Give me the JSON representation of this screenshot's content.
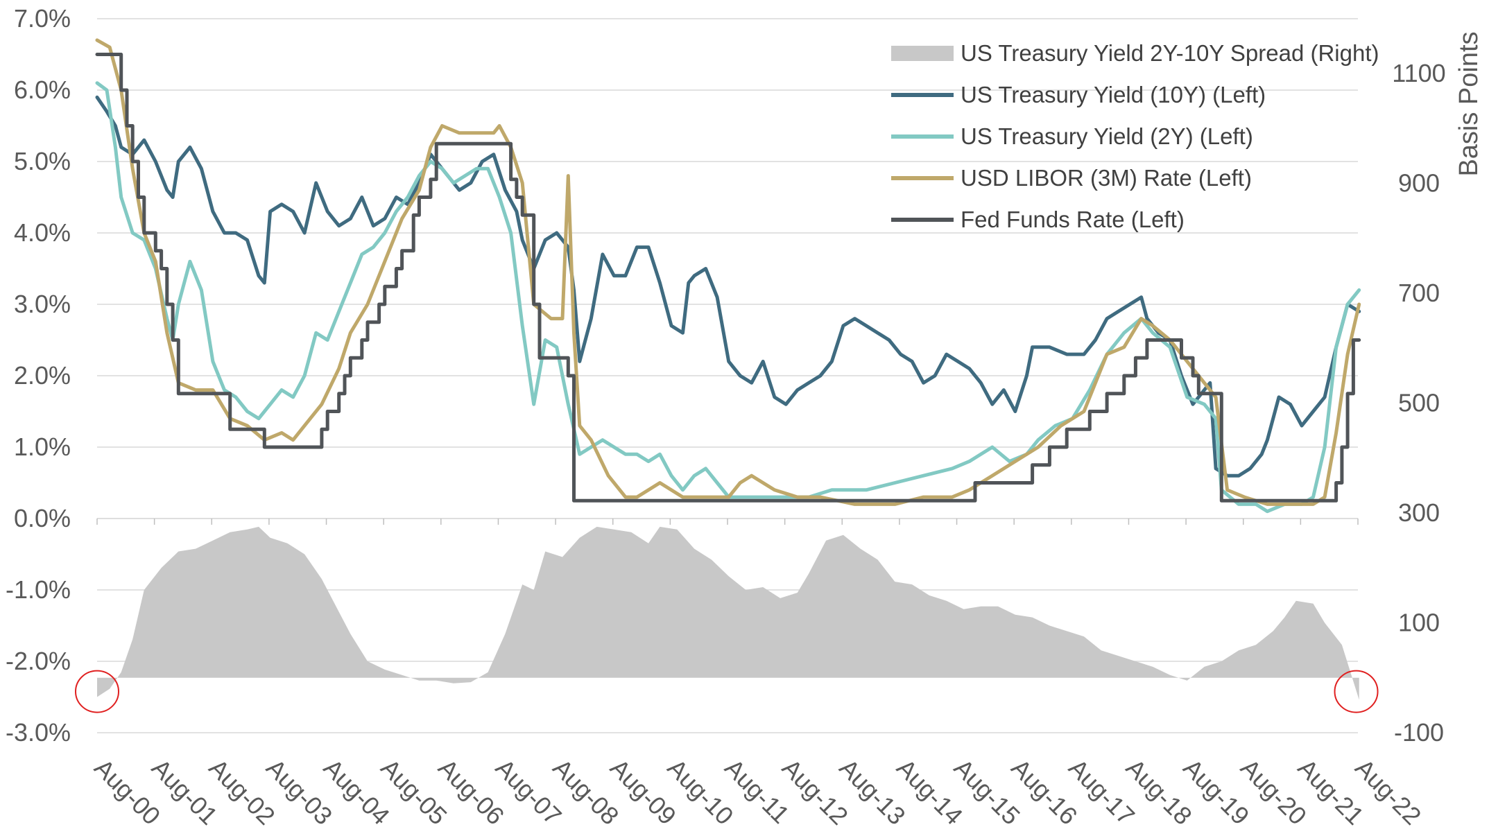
{
  "chart_data": {
    "type": "line",
    "x_axis": {
      "categories": [
        "Aug-00",
        "Aug-01",
        "Aug-02",
        "Aug-03",
        "Aug-04",
        "Aug-05",
        "Aug-06",
        "Aug-07",
        "Aug-08",
        "Aug-09",
        "Aug-10",
        "Aug-11",
        "Aug-12",
        "Aug-13",
        "Aug-14",
        "Aug-15",
        "Aug-16",
        "Aug-17",
        "Aug-18",
        "Aug-19",
        "Aug-20",
        "Aug-21",
        "Aug-22"
      ]
    },
    "left_axis": {
      "ticks": [
        "7.0%",
        "6.0%",
        "5.0%",
        "4.0%",
        "3.0%",
        "2.0%",
        "1.0%",
        "0.0%",
        "-1.0%",
        "-2.0%",
        "-3.0%"
      ],
      "ylim": [
        -3.0,
        7.0
      ]
    },
    "right_axis": {
      "label": "Basis Points",
      "ticks": [
        "1100",
        "900",
        "700",
        "500",
        "300",
        "100",
        "-100"
      ],
      "ylim": [
        -100,
        1200
      ]
    },
    "legend": {
      "position": "top-right",
      "entries": [
        {
          "label": "US Treasury Yield 2Y-10Y Spread (Right)",
          "color": "#c8c8c8",
          "kind": "area"
        },
        {
          "label": "US Treasury Yield (10Y) (Left)",
          "color": "#3f6b80",
          "kind": "line"
        },
        {
          "label": "US Treasury Yield (2Y) (Left)",
          "color": "#82c9c3",
          "kind": "line"
        },
        {
          "label": "USD LIBOR (3M) Rate (Left)",
          "color": "#bfa86a",
          "kind": "line"
        },
        {
          "label": "Fed Funds Rate (Left)",
          "color": "#505458",
          "kind": "line"
        }
      ]
    },
    "series": [
      {
        "name": "US Treasury Yield 2Y-10Y Spread (Right)",
        "axis": "right",
        "color": "#c8c8c8",
        "type": "area",
        "x": [
          2000.58,
          2000.8,
          2001.0,
          2001.2,
          2001.4,
          2001.7,
          2002.0,
          2002.3,
          2002.6,
          2002.9,
          2003.2,
          2003.4,
          2003.6,
          2003.9,
          2004.2,
          2004.5,
          2004.8,
          2005.0,
          2005.3,
          2005.6,
          2005.9,
          2006.2,
          2006.5,
          2006.8,
          2007.1,
          2007.4,
          2007.7,
          2008.0,
          2008.2,
          2008.4,
          2008.7,
          2009.0,
          2009.3,
          2009.6,
          2009.9,
          2010.2,
          2010.4,
          2010.7,
          2011.0,
          2011.3,
          2011.6,
          2011.9,
          2012.2,
          2012.5,
          2012.8,
          2013.0,
          2013.3,
          2013.6,
          2013.9,
          2014.2,
          2014.5,
          2014.8,
          2015.1,
          2015.4,
          2015.7,
          2016.0,
          2016.3,
          2016.6,
          2016.9,
          2017.2,
          2017.5,
          2017.8,
          2018.1,
          2018.4,
          2018.7,
          2019.0,
          2019.3,
          2019.6,
          2019.9,
          2020.2,
          2020.5,
          2020.8,
          2021.1,
          2021.3,
          2021.5,
          2021.8,
          2022.0,
          2022.3,
          2022.6
        ],
        "y": [
          -35,
          -20,
          10,
          70,
          160,
          200,
          230,
          235,
          250,
          265,
          270,
          275,
          255,
          245,
          225,
          180,
          120,
          80,
          30,
          15,
          5,
          -5,
          -5,
          -10,
          -8,
          10,
          80,
          170,
          160,
          230,
          220,
          255,
          275,
          270,
          265,
          245,
          275,
          270,
          235,
          215,
          185,
          160,
          165,
          145,
          155,
          190,
          250,
          260,
          235,
          215,
          175,
          170,
          150,
          140,
          125,
          130,
          130,
          115,
          110,
          95,
          85,
          75,
          50,
          40,
          30,
          20,
          5,
          -5,
          20,
          30,
          50,
          60,
          85,
          110,
          140,
          135,
          100,
          60,
          -40
        ]
      },
      {
        "name": "US Treasury Yield (10Y) (Left)",
        "axis": "left",
        "color": "#3f6b80",
        "type": "line",
        "x": [
          2000.58,
          2000.75,
          2000.9,
          2001.0,
          2001.2,
          2001.4,
          2001.6,
          2001.8,
          2001.9,
          2002.0,
          2002.2,
          2002.4,
          2002.6,
          2002.8,
          2003.0,
          2003.2,
          2003.4,
          2003.5,
          2003.6,
          2003.8,
          2004.0,
          2004.2,
          2004.4,
          2004.6,
          2004.8,
          2005.0,
          2005.2,
          2005.4,
          2005.6,
          2005.8,
          2006.0,
          2006.2,
          2006.4,
          2006.5,
          2006.7,
          2006.9,
          2007.1,
          2007.3,
          2007.5,
          2007.7,
          2007.9,
          2008.0,
          2008.2,
          2008.4,
          2008.6,
          2008.8,
          2008.9,
          2009.0,
          2009.2,
          2009.4,
          2009.6,
          2009.8,
          2010.0,
          2010.2,
          2010.4,
          2010.6,
          2010.8,
          2010.9,
          2011.0,
          2011.2,
          2011.4,
          2011.6,
          2011.8,
          2012.0,
          2012.2,
          2012.4,
          2012.6,
          2012.8,
          2013.0,
          2013.2,
          2013.4,
          2013.6,
          2013.8,
          2014.0,
          2014.2,
          2014.4,
          2014.6,
          2014.8,
          2015.0,
          2015.2,
          2015.4,
          2015.6,
          2015.8,
          2016.0,
          2016.2,
          2016.4,
          2016.6,
          2016.8,
          2016.9,
          2017.2,
          2017.5,
          2017.8,
          2018.0,
          2018.2,
          2018.4,
          2018.6,
          2018.8,
          2018.9,
          2019.1,
          2019.3,
          2019.5,
          2019.7,
          2019.9,
          2020.0,
          2020.1,
          2020.3,
          2020.5,
          2020.7,
          2020.9,
          2021.0,
          2021.2,
          2021.4,
          2021.6,
          2021.8,
          2022.0,
          2022.2,
          2022.4,
          2022.6
        ],
        "y": [
          5.9,
          5.7,
          5.5,
          5.2,
          5.1,
          5.3,
          5.0,
          4.6,
          4.5,
          5.0,
          5.2,
          4.9,
          4.3,
          4.0,
          4.0,
          3.9,
          3.4,
          3.3,
          4.3,
          4.4,
          4.3,
          4.0,
          4.7,
          4.3,
          4.1,
          4.2,
          4.5,
          4.1,
          4.2,
          4.5,
          4.4,
          4.7,
          5.1,
          5.0,
          4.8,
          4.6,
          4.7,
          5.0,
          5.1,
          4.6,
          4.3,
          3.9,
          3.5,
          3.9,
          4.0,
          3.8,
          3.2,
          2.2,
          2.8,
          3.7,
          3.4,
          3.4,
          3.8,
          3.8,
          3.3,
          2.7,
          2.6,
          3.3,
          3.4,
          3.5,
          3.1,
          2.2,
          2.0,
          1.9,
          2.2,
          1.7,
          1.6,
          1.8,
          1.9,
          2.0,
          2.2,
          2.7,
          2.8,
          2.7,
          2.6,
          2.5,
          2.3,
          2.2,
          1.9,
          2.0,
          2.3,
          2.2,
          2.1,
          1.9,
          1.6,
          1.8,
          1.5,
          2.0,
          2.4,
          2.4,
          2.3,
          2.3,
          2.5,
          2.8,
          2.9,
          3.0,
          3.1,
          2.8,
          2.6,
          2.5,
          2.0,
          1.6,
          1.8,
          1.9,
          0.7,
          0.6,
          0.6,
          0.7,
          0.9,
          1.1,
          1.7,
          1.6,
          1.3,
          1.5,
          1.7,
          2.4,
          3.0,
          2.9
        ]
      },
      {
        "name": "US Treasury Yield (2Y) (Left)",
        "axis": "left",
        "color": "#82c9c3",
        "type": "line",
        "x": [
          2000.58,
          2000.75,
          2000.9,
          2001.0,
          2001.2,
          2001.4,
          2001.6,
          2001.8,
          2001.9,
          2002.0,
          2002.2,
          2002.4,
          2002.6,
          2002.8,
          2003.0,
          2003.2,
          2003.4,
          2003.6,
          2003.8,
          2004.0,
          2004.2,
          2004.4,
          2004.6,
          2004.8,
          2005.0,
          2005.2,
          2005.4,
          2005.6,
          2005.8,
          2006.0,
          2006.2,
          2006.4,
          2006.6,
          2006.8,
          2007.0,
          2007.2,
          2007.4,
          2007.6,
          2007.8,
          2008.0,
          2008.2,
          2008.4,
          2008.6,
          2008.8,
          2009.0,
          2009.2,
          2009.4,
          2009.6,
          2009.8,
          2010.0,
          2010.2,
          2010.4,
          2010.6,
          2010.8,
          2011.0,
          2011.2,
          2011.4,
          2011.6,
          2011.8,
          2012.0,
          2012.5,
          2013.0,
          2013.4,
          2013.6,
          2014.0,
          2014.5,
          2015.0,
          2015.5,
          2015.8,
          2016.0,
          2016.2,
          2016.5,
          2016.8,
          2017.0,
          2017.3,
          2017.6,
          2017.9,
          2018.2,
          2018.5,
          2018.8,
          2019.0,
          2019.3,
          2019.6,
          2019.9,
          2020.1,
          2020.2,
          2020.5,
          2020.8,
          2021.0,
          2021.3,
          2021.6,
          2021.8,
          2022.0,
          2022.2,
          2022.4,
          2022.6
        ],
        "y": [
          6.1,
          6.0,
          5.2,
          4.5,
          4.0,
          3.9,
          3.5,
          2.8,
          2.5,
          3.0,
          3.6,
          3.2,
          2.2,
          1.8,
          1.7,
          1.5,
          1.4,
          1.6,
          1.8,
          1.7,
          2.0,
          2.6,
          2.5,
          2.9,
          3.3,
          3.7,
          3.8,
          4.0,
          4.3,
          4.5,
          4.8,
          5.0,
          4.9,
          4.7,
          4.8,
          4.9,
          4.9,
          4.5,
          4.0,
          2.7,
          1.6,
          2.5,
          2.4,
          1.6,
          0.9,
          1.0,
          1.1,
          1.0,
          0.9,
          0.9,
          0.8,
          0.9,
          0.6,
          0.4,
          0.6,
          0.7,
          0.5,
          0.3,
          0.3,
          0.3,
          0.3,
          0.3,
          0.4,
          0.4,
          0.4,
          0.5,
          0.6,
          0.7,
          0.8,
          0.9,
          1.0,
          0.8,
          0.9,
          1.1,
          1.3,
          1.4,
          1.8,
          2.3,
          2.6,
          2.8,
          2.6,
          2.4,
          1.7,
          1.6,
          1.4,
          0.4,
          0.2,
          0.2,
          0.1,
          0.2,
          0.2,
          0.3,
          1.0,
          2.4,
          3.0,
          3.2
        ]
      },
      {
        "name": "USD LIBOR (3M) Rate (Left)",
        "axis": "left",
        "color": "#bfa86a",
        "type": "line",
        "x": [
          2000.58,
          2000.8,
          2001.0,
          2001.2,
          2001.4,
          2001.6,
          2001.8,
          2002.0,
          2002.3,
          2002.6,
          2002.9,
          2003.2,
          2003.5,
          2003.8,
          2004.0,
          2004.2,
          2004.5,
          2004.8,
          2005.0,
          2005.3,
          2005.6,
          2005.9,
          2006.2,
          2006.4,
          2006.6,
          2006.9,
          2007.2,
          2007.5,
          2007.6,
          2007.8,
          2008.0,
          2008.2,
          2008.5,
          2008.7,
          2008.8,
          2008.9,
          2009.0,
          2009.2,
          2009.5,
          2009.8,
          2010.0,
          2010.4,
          2010.8,
          2011.2,
          2011.6,
          2011.8,
          2012.0,
          2012.4,
          2012.8,
          2013.2,
          2013.8,
          2014.5,
          2015.0,
          2015.5,
          2015.8,
          2016.2,
          2016.6,
          2017.0,
          2017.4,
          2017.8,
          2018.2,
          2018.5,
          2018.8,
          2019.0,
          2019.3,
          2019.6,
          2019.9,
          2020.1,
          2020.3,
          2020.6,
          2021.0,
          2021.4,
          2021.8,
          2022.0,
          2022.2,
          2022.4,
          2022.6
        ],
        "y": [
          6.7,
          6.6,
          6.0,
          4.9,
          4.0,
          3.6,
          2.6,
          1.9,
          1.8,
          1.8,
          1.4,
          1.3,
          1.1,
          1.2,
          1.1,
          1.3,
          1.6,
          2.1,
          2.6,
          3.0,
          3.6,
          4.2,
          4.6,
          5.2,
          5.5,
          5.4,
          5.4,
          5.4,
          5.5,
          5.2,
          4.7,
          3.0,
          2.8,
          2.8,
          4.8,
          2.6,
          1.3,
          1.1,
          0.6,
          0.3,
          0.3,
          0.5,
          0.3,
          0.3,
          0.3,
          0.5,
          0.6,
          0.4,
          0.3,
          0.3,
          0.2,
          0.2,
          0.3,
          0.3,
          0.4,
          0.6,
          0.8,
          1.0,
          1.3,
          1.5,
          2.3,
          2.4,
          2.8,
          2.7,
          2.5,
          2.2,
          1.9,
          1.7,
          0.4,
          0.3,
          0.2,
          0.2,
          0.2,
          0.3,
          1.2,
          2.3,
          3.0
        ]
      },
      {
        "name": "Fed Funds Rate (Left)",
        "axis": "left",
        "color": "#505458",
        "type": "line",
        "step": true,
        "x": [
          2000.58,
          2001.0,
          2001.1,
          2001.2,
          2001.3,
          2001.4,
          2001.6,
          2001.7,
          2001.8,
          2001.9,
          2002.0,
          2002.9,
          2003.5,
          2004.5,
          2004.6,
          2004.8,
          2004.9,
          2005.0,
          2005.2,
          2005.3,
          2005.5,
          2005.6,
          2005.8,
          2005.9,
          2006.1,
          2006.2,
          2006.4,
          2006.5,
          2007.7,
          2007.8,
          2007.9,
          2008.0,
          2008.2,
          2008.3,
          2008.8,
          2008.9,
          2015.9,
          2016.9,
          2017.2,
          2017.5,
          2017.9,
          2018.2,
          2018.5,
          2018.7,
          2018.9,
          2019.5,
          2019.7,
          2019.8,
          2020.2,
          2022.2,
          2022.3,
          2022.4,
          2022.5,
          2022.6
        ],
        "y": [
          6.5,
          6.0,
          5.5,
          5.0,
          4.5,
          4.0,
          3.75,
          3.5,
          3.0,
          2.5,
          1.75,
          1.25,
          1.0,
          1.25,
          1.5,
          1.75,
          2.0,
          2.25,
          2.5,
          2.75,
          3.0,
          3.25,
          3.5,
          3.75,
          4.25,
          4.5,
          4.75,
          5.25,
          5.25,
          4.75,
          4.5,
          4.25,
          3.0,
          2.25,
          2.0,
          0.25,
          0.5,
          0.75,
          1.0,
          1.25,
          1.5,
          1.75,
          2.0,
          2.25,
          2.5,
          2.25,
          2.0,
          1.75,
          0.25,
          0.5,
          1.0,
          1.75,
          2.5,
          2.5
        ]
      }
    ],
    "annotations": [
      {
        "shape": "circle",
        "color": "#e02020",
        "x": 2000.58,
        "y_right": -25
      },
      {
        "shape": "circle",
        "color": "#e02020",
        "x": 2022.55,
        "y_right": -25
      }
    ],
    "grid": "horizontal"
  }
}
